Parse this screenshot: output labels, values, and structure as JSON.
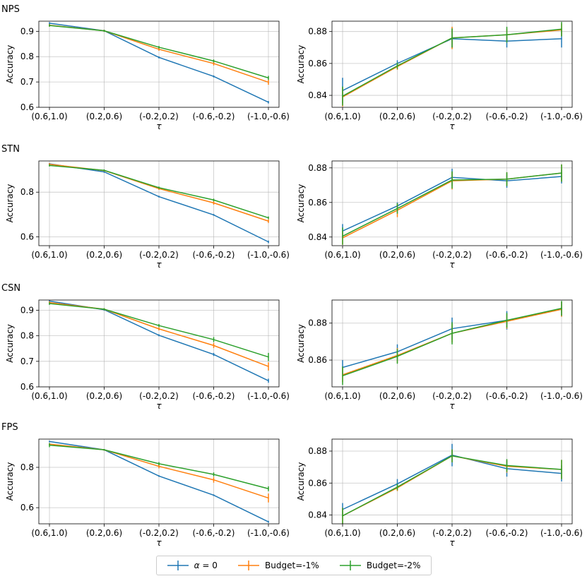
{
  "legend": {
    "alpha_prefix": "α",
    "alpha_suffix": " = 0",
    "budget1": "Budget=-1%",
    "budget2": "Budget=-2%"
  },
  "colors": {
    "alpha0": "#1f77b4",
    "budget1": "#ff7f0e",
    "budget2": "#2ca02c"
  },
  "chart_data": [
    {
      "type": "line",
      "row": 0,
      "col": 0,
      "row_title": "NPS",
      "categories": [
        "(0.6,1.0)",
        "(0.2,0.6)",
        "(-0.2,0.2)",
        "(-0.6,-0.2)",
        "(-1.0,-0.6)"
      ],
      "xlabel": "τ",
      "ylabel": "Accuracy",
      "ylim": [
        0.6,
        0.94
      ],
      "yticks": [
        0.6,
        0.7,
        0.8,
        0.9
      ],
      "ytick_labels": [
        "0.6",
        "0.7",
        "0.8",
        "0.9"
      ],
      "series": [
        {
          "name": "α = 0",
          "values": [
            0.932,
            0.902,
            0.797,
            0.722,
            0.62
          ],
          "err": [
            0.004,
            0.004,
            0.004,
            0.004,
            0.005
          ]
        },
        {
          "name": "Budget=-1%",
          "values": [
            0.924,
            0.902,
            0.829,
            0.773,
            0.699
          ],
          "err": [
            0.005,
            0.004,
            0.006,
            0.008,
            0.01
          ]
        },
        {
          "name": "Budget=-2%",
          "values": [
            0.923,
            0.902,
            0.837,
            0.783,
            0.716
          ],
          "err": [
            0.005,
            0.004,
            0.005,
            0.006,
            0.008
          ]
        }
      ]
    },
    {
      "type": "line",
      "row": 0,
      "col": 1,
      "row_title": "",
      "categories": [
        "(0.6,1.0)",
        "(0.2,0.6)",
        "(-0.2,0.2)",
        "(-0.6,-0.2)",
        "(-1.0,-0.6)"
      ],
      "xlabel": "τ",
      "ylabel": "Accuracy",
      "ylim": [
        0.8325,
        0.8865
      ],
      "yticks": [
        0.84,
        0.86,
        0.88
      ],
      "ytick_labels": [
        "0.84",
        "0.86",
        "0.88"
      ],
      "series": [
        {
          "name": "α = 0",
          "values": [
            0.843,
            0.86,
            0.8755,
            0.874,
            0.8755
          ],
          "err": [
            0.008,
            0.002,
            0.006,
            0.004,
            0.0055
          ]
        },
        {
          "name": "Budget=-1%",
          "values": [
            0.839,
            0.858,
            0.876,
            0.878,
            0.881
          ],
          "err": [
            0.006,
            0.002,
            0.007,
            0.004,
            0.004
          ]
        },
        {
          "name": "Budget=-2%",
          "values": [
            0.8395,
            0.8585,
            0.876,
            0.878,
            0.8815
          ],
          "err": [
            0.006,
            0.002,
            0.006,
            0.005,
            0.0045
          ]
        }
      ]
    },
    {
      "type": "line",
      "row": 1,
      "col": 0,
      "row_title": "STN",
      "categories": [
        "(0.6,1.0)",
        "(0.2,0.6)",
        "(-0.2,0.2)",
        "(-0.6,-0.2)",
        "(-1.0,-0.6)"
      ],
      "xlabel": "τ",
      "ylabel": "Accuracy",
      "ylim": [
        0.56,
        0.94
      ],
      "yticks": [
        0.6,
        0.8
      ],
      "ytick_labels": [
        "0.6",
        "0.8"
      ],
      "series": [
        {
          "name": "α = 0",
          "values": [
            0.927,
            0.891,
            0.78,
            0.698,
            0.577
          ],
          "err": [
            0.004,
            0.004,
            0.004,
            0.004,
            0.006
          ]
        },
        {
          "name": "Budget=-1%",
          "values": [
            0.925,
            0.897,
            0.816,
            0.752,
            0.67
          ],
          "err": [
            0.005,
            0.004,
            0.006,
            0.008,
            0.008
          ]
        },
        {
          "name": "Budget=-2%",
          "values": [
            0.92,
            0.898,
            0.82,
            0.765,
            0.685
          ],
          "err": [
            0.005,
            0.004,
            0.005,
            0.006,
            0.006
          ]
        }
      ]
    },
    {
      "type": "line",
      "row": 1,
      "col": 1,
      "row_title": "",
      "categories": [
        "(0.6,1.0)",
        "(0.2,0.6)",
        "(-0.2,0.2)",
        "(-0.6,-0.2)",
        "(-1.0,-0.6)"
      ],
      "xlabel": "τ",
      "ylabel": "Accuracy",
      "ylim": [
        0.835,
        0.884
      ],
      "yticks": [
        0.84,
        0.86,
        0.88
      ],
      "ytick_labels": [
        "0.84",
        "0.86",
        "0.88"
      ],
      "series": [
        {
          "name": "α = 0",
          "values": [
            0.8435,
            0.858,
            0.8745,
            0.8725,
            0.875
          ],
          "err": [
            0.004,
            0.002,
            0.005,
            0.004,
            0.004
          ]
        },
        {
          "name": "Budget=-1%",
          "values": [
            0.8395,
            0.8555,
            0.8725,
            0.8735,
            0.877
          ],
          "err": [
            0.004,
            0.004,
            0.005,
            0.004,
            0.005
          ]
        },
        {
          "name": "Budget=-2%",
          "values": [
            0.8405,
            0.8565,
            0.873,
            0.8735,
            0.877
          ],
          "err": [
            0.005,
            0.003,
            0.005,
            0.004,
            0.005
          ]
        }
      ]
    },
    {
      "type": "line",
      "row": 2,
      "col": 0,
      "row_title": "CSN",
      "categories": [
        "(0.6,1.0)",
        "(0.2,0.6)",
        "(-0.2,0.2)",
        "(-0.6,-0.2)",
        "(-1.0,-0.6)"
      ],
      "xlabel": "τ",
      "ylabel": "Accuracy",
      "ylim": [
        0.6,
        0.94
      ],
      "yticks": [
        0.6,
        0.7,
        0.8,
        0.9
      ],
      "ytick_labels": [
        "0.6",
        "0.7",
        "0.8",
        "0.9"
      ],
      "series": [
        {
          "name": "α = 0",
          "values": [
            0.936,
            0.902,
            0.802,
            0.727,
            0.624
          ],
          "err": [
            0.004,
            0.004,
            0.004,
            0.006,
            0.008
          ]
        },
        {
          "name": "Budget=-1%",
          "values": [
            0.93,
            0.904,
            0.827,
            0.762,
            0.68
          ],
          "err": [
            0.005,
            0.004,
            0.006,
            0.01,
            0.016
          ]
        },
        {
          "name": "Budget=-2%",
          "values": [
            0.926,
            0.904,
            0.84,
            0.785,
            0.717
          ],
          "err": [
            0.005,
            0.004,
            0.006,
            0.01,
            0.016
          ]
        }
      ]
    },
    {
      "type": "line",
      "row": 2,
      "col": 1,
      "row_title": "",
      "categories": [
        "(0.6,1.0)",
        "(0.2,0.6)",
        "(-0.2,0.2)",
        "(-0.6,-0.2)",
        "(-1.0,-0.6)"
      ],
      "xlabel": "τ",
      "ylabel": "Accuracy",
      "ylim": [
        0.8455,
        0.8925
      ],
      "yticks": [
        0.86,
        0.88
      ],
      "ytick_labels": [
        "0.86",
        "0.88"
      ],
      "series": [
        {
          "name": "α = 0",
          "values": [
            0.856,
            0.8645,
            0.877,
            0.8815,
            0.8875
          ],
          "err": [
            0.004,
            0.004,
            0.006,
            0.005,
            0.004
          ]
        },
        {
          "name": "Budget=-1%",
          "values": [
            0.852,
            0.8625,
            0.8745,
            0.881,
            0.8875
          ],
          "err": [
            0.004,
            0.004,
            0.005,
            0.004,
            0.004
          ]
        },
        {
          "name": "Budget=-2%",
          "values": [
            0.8515,
            0.862,
            0.8745,
            0.8815,
            0.888
          ],
          "err": [
            0.005,
            0.004,
            0.006,
            0.004,
            0.004
          ]
        }
      ]
    },
    {
      "type": "line",
      "row": 3,
      "col": 0,
      "row_title": "FPS",
      "categories": [
        "(0.6,1.0)",
        "(0.2,0.6)",
        "(-0.2,0.2)",
        "(-0.6,-0.2)",
        "(-1.0,-0.6)"
      ],
      "xlabel": "τ",
      "ylabel": "Accuracy",
      "ylim": [
        0.52,
        0.94
      ],
      "yticks": [
        0.6,
        0.8
      ],
      "ytick_labels": [
        "0.6",
        "0.8"
      ],
      "series": [
        {
          "name": "α = 0",
          "values": [
            0.928,
            0.887,
            0.757,
            0.662,
            0.53
          ],
          "err": [
            0.004,
            0.004,
            0.004,
            0.004,
            0.005
          ]
        },
        {
          "name": "Budget=-1%",
          "values": [
            0.915,
            0.887,
            0.805,
            0.738,
            0.648
          ],
          "err": [
            0.005,
            0.004,
            0.01,
            0.014,
            0.022
          ]
        },
        {
          "name": "Budget=-2%",
          "values": [
            0.91,
            0.887,
            0.818,
            0.765,
            0.694
          ],
          "err": [
            0.01,
            0.004,
            0.008,
            0.01,
            0.012
          ]
        }
      ]
    },
    {
      "type": "line",
      "row": 3,
      "col": 1,
      "row_title": "",
      "categories": [
        "(0.6,1.0)",
        "(0.2,0.6)",
        "(-0.2,0.2)",
        "(-0.6,-0.2)",
        "(-1.0,-0.6)"
      ],
      "xlabel": "τ",
      "ylabel": "Accuracy",
      "ylim": [
        0.8345,
        0.8875
      ],
      "yticks": [
        0.84,
        0.86,
        0.88
      ],
      "ytick_labels": [
        "0.84",
        "0.86",
        "0.88"
      ],
      "series": [
        {
          "name": "α = 0",
          "values": [
            0.8435,
            0.8595,
            0.8775,
            0.869,
            0.866
          ],
          "err": [
            0.004,
            0.003,
            0.007,
            0.005,
            0.005
          ]
        },
        {
          "name": "Budget=-1%",
          "values": [
            0.8395,
            0.857,
            0.877,
            0.8705,
            0.8685
          ],
          "err": [
            0.005,
            0.002,
            0.004,
            0.004,
            0.006
          ]
        },
        {
          "name": "Budget=-2%",
          "values": [
            0.8395,
            0.8575,
            0.877,
            0.871,
            0.8685
          ],
          "err": [
            0.005,
            0.002,
            0.004,
            0.004,
            0.006
          ]
        }
      ]
    }
  ]
}
